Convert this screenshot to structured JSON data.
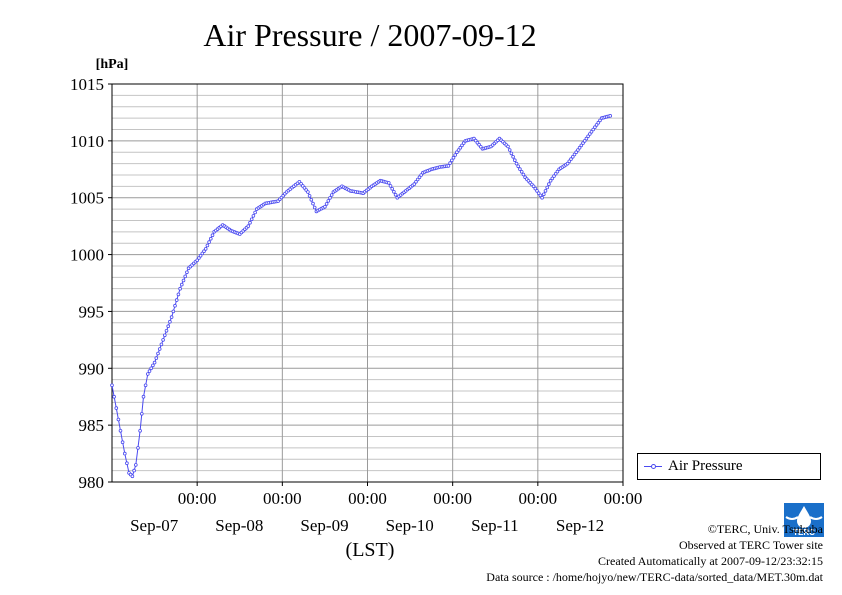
{
  "chart_data": {
    "type": "line",
    "title": "Air Pressure / 2007-09-12",
    "unit_label": "[hPa]",
    "xlabel": "(LST)",
    "ylim": [
      980,
      1015
    ],
    "y_ticks": [
      980,
      985,
      990,
      995,
      1000,
      1005,
      1010,
      1015
    ],
    "grid": true,
    "legend_position": "right",
    "x_ticks": [
      {
        "day": 1,
        "time": "00:00",
        "date": "Sep-07"
      },
      {
        "day": 2,
        "time": "00:00",
        "date": "Sep-08"
      },
      {
        "day": 3,
        "time": "00:00",
        "date": "Sep-09"
      },
      {
        "day": 4,
        "time": "00:00",
        "date": "Sep-10"
      },
      {
        "day": 5,
        "time": "00:00",
        "date": "Sep-11"
      },
      {
        "day": 6,
        "time": "00:00",
        "date": "Sep-12"
      }
    ],
    "xlim": [
      0,
      6
    ],
    "series": [
      {
        "name": "Air Pressure",
        "color": "#4a4af0",
        "points": [
          [
            0,
            988.5
          ],
          [
            0.05,
            986.5
          ],
          [
            0.1,
            984.5
          ],
          [
            0.15,
            982.5
          ],
          [
            0.2,
            980.8
          ],
          [
            0.24,
            980.5
          ],
          [
            0.28,
            981.5
          ],
          [
            0.33,
            984.5
          ],
          [
            0.37,
            987.5
          ],
          [
            0.42,
            989.5
          ],
          [
            0.5,
            990.5
          ],
          [
            0.6,
            992.5
          ],
          [
            0.7,
            994.5
          ],
          [
            0.8,
            997.0
          ],
          [
            0.9,
            998.8
          ],
          [
            1.0,
            999.5
          ],
          [
            1.1,
            1000.5
          ],
          [
            1.2,
            1002.0
          ],
          [
            1.3,
            1002.6
          ],
          [
            1.4,
            1002.1
          ],
          [
            1.5,
            1001.8
          ],
          [
            1.6,
            1002.5
          ],
          [
            1.7,
            1004.0
          ],
          [
            1.8,
            1004.5
          ],
          [
            1.95,
            1004.7
          ],
          [
            2.05,
            1005.5
          ],
          [
            2.2,
            1006.4
          ],
          [
            2.3,
            1005.5
          ],
          [
            2.4,
            1003.8
          ],
          [
            2.5,
            1004.2
          ],
          [
            2.6,
            1005.5
          ],
          [
            2.7,
            1006.0
          ],
          [
            2.8,
            1005.6
          ],
          [
            2.95,
            1005.4
          ],
          [
            3.05,
            1006.0
          ],
          [
            3.15,
            1006.5
          ],
          [
            3.25,
            1006.3
          ],
          [
            3.35,
            1005.0
          ],
          [
            3.45,
            1005.6
          ],
          [
            3.55,
            1006.2
          ],
          [
            3.65,
            1007.2
          ],
          [
            3.75,
            1007.5
          ],
          [
            3.85,
            1007.7
          ],
          [
            3.95,
            1007.8
          ],
          [
            4.05,
            1009.0
          ],
          [
            4.15,
            1010.0
          ],
          [
            4.25,
            1010.2
          ],
          [
            4.35,
            1009.3
          ],
          [
            4.45,
            1009.5
          ],
          [
            4.55,
            1010.2
          ],
          [
            4.65,
            1009.5
          ],
          [
            4.75,
            1008.0
          ],
          [
            4.85,
            1006.8
          ],
          [
            4.95,
            1006.0
          ],
          [
            5.05,
            1005.0
          ],
          [
            5.15,
            1006.5
          ],
          [
            5.25,
            1007.5
          ],
          [
            5.35,
            1008.0
          ],
          [
            5.45,
            1009.0
          ],
          [
            5.55,
            1010.0
          ],
          [
            5.65,
            1011.0
          ],
          [
            5.75,
            1012.0
          ],
          [
            5.85,
            1012.2
          ]
        ]
      }
    ]
  },
  "legend": {
    "label": "Air Pressure"
  },
  "credits": {
    "line1": "©TERC, Univ. Tsukuba",
    "line2": "Observed at TERC Tower site",
    "line3": "Created Automatically at 2007-09-12/23:32:15",
    "line4": "Data source : /home/hojyo/new/TERC-data/sorted_data/MET.30m.dat"
  },
  "logo": {
    "text": "TERC",
    "color": "#1a6fc9"
  }
}
